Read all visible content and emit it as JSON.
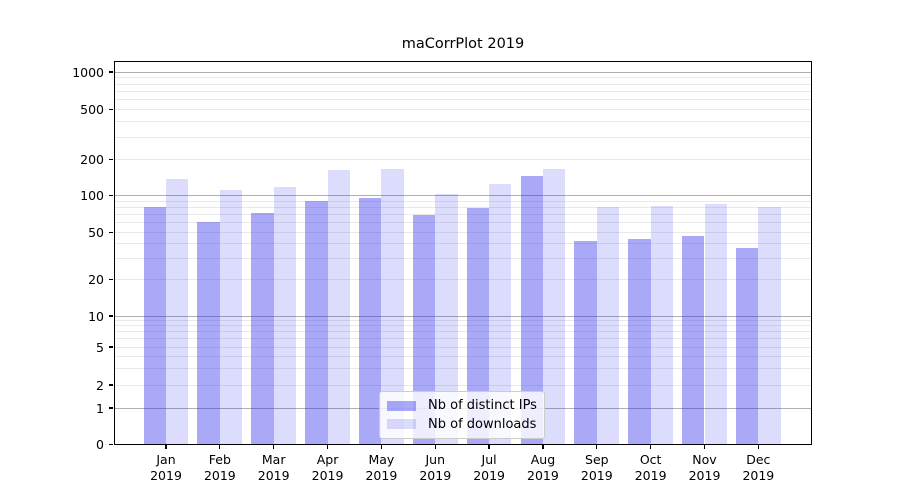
{
  "chart_data": {
    "type": "bar",
    "title": "maCorrPlot 2019",
    "categories": [
      "Jan",
      "Feb",
      "Mar",
      "Apr",
      "May",
      "Jun",
      "Jul",
      "Aug",
      "Sep",
      "Oct",
      "Nov",
      "Dec"
    ],
    "year_label": "2019",
    "series": [
      {
        "name": "Nb of distinct IPs",
        "key": "distinct-ips",
        "base_color": "#2828ee",
        "alpha": 0.4,
        "rendered_color": "#a9a9f8",
        "values": [
          81,
          61,
          72,
          91,
          95,
          69,
          80,
          146,
          42,
          44,
          47,
          37
        ]
      },
      {
        "name": "Nb of downloads",
        "key": "downloads",
        "base_color": "#2828ee",
        "alpha": 0.16,
        "rendered_color": "#dddDfc",
        "values": [
          137,
          112,
          119,
          164,
          168,
          103,
          125,
          168,
          81,
          82,
          85,
          81
        ]
      }
    ],
    "yscale": "symlog",
    "ylim": [
      0,
      1300
    ],
    "y_ticks": [
      0,
      1,
      2,
      5,
      10,
      20,
      50,
      100,
      200,
      500,
      1000
    ],
    "y_major_gridlines": [
      1,
      10,
      100,
      1000
    ],
    "y_minor_gridlines": [
      2,
      3,
      4,
      5,
      6,
      7,
      8,
      9,
      20,
      30,
      40,
      50,
      60,
      70,
      80,
      90,
      200,
      300,
      400,
      500,
      600,
      700,
      800,
      900
    ],
    "grid": true,
    "legend_position": "lower-center-inside",
    "xlabel": "",
    "ylabel": ""
  },
  "colors": {
    "background": "#ffffff",
    "axis": "#000000",
    "major_grid": "#b0b0b0",
    "minor_grid": "#e9e9e9",
    "legend_border": "#cccccc"
  }
}
